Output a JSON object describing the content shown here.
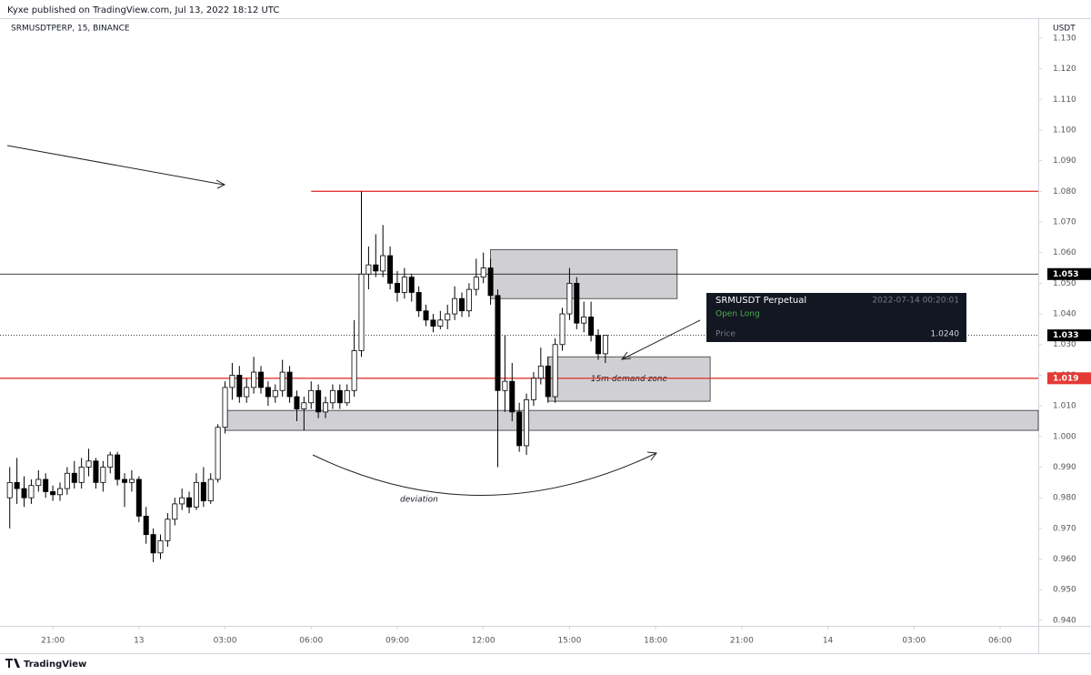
{
  "chart_data": {
    "type": "candlestick",
    "header": "Kyxe published on TradingView.com, Jul 13, 2022 18:12 UTC",
    "symbol": "SRMUSDTPERP, 15, BINANCE",
    "currency": "USDT",
    "brand": "TradingView",
    "bull_color": "#ffffff",
    "bear_color": "#000000",
    "x": [
      19.5,
      19.75,
      20,
      20.25,
      20.5,
      20.75,
      21,
      21.25,
      21.5,
      21.75,
      22,
      22.25,
      22.5,
      22.75,
      23,
      23.25,
      23.5,
      23.75,
      24,
      24.25,
      24.5,
      24.75,
      25,
      25.25,
      25.5,
      25.75,
      26,
      26.25,
      26.5,
      26.75,
      27,
      27.25,
      27.5,
      27.75,
      28,
      28.25,
      28.5,
      28.75,
      29,
      29.25,
      29.5,
      29.75,
      30,
      30.25,
      30.5,
      30.75,
      31,
      31.25,
      31.5,
      31.75,
      32,
      32.25,
      32.5,
      32.75,
      33,
      33.25,
      33.5,
      33.75,
      34,
      34.25,
      34.5,
      34.75,
      35,
      35.25,
      35.5,
      35.75,
      36,
      36.25,
      36.5,
      36.75,
      37,
      37.25,
      37.5,
      37.75,
      38,
      38.25,
      38.5,
      38.75,
      39,
      39.25,
      39.5,
      39.75,
      40,
      40.25
    ],
    "ohlc": [
      [
        0.98,
        0.99,
        0.97,
        0.985
      ],
      [
        0.985,
        0.993,
        0.978,
        0.983
      ],
      [
        0.983,
        0.987,
        0.977,
        0.98
      ],
      [
        0.98,
        0.986,
        0.978,
        0.984
      ],
      [
        0.984,
        0.989,
        0.982,
        0.986
      ],
      [
        0.986,
        0.988,
        0.98,
        0.982
      ],
      [
        0.982,
        0.984,
        0.979,
        0.981
      ],
      [
        0.981,
        0.985,
        0.979,
        0.983
      ],
      [
        0.983,
        0.99,
        0.981,
        0.988
      ],
      [
        0.988,
        0.992,
        0.983,
        0.985
      ],
      [
        0.985,
        0.993,
        0.983,
        0.99
      ],
      [
        0.99,
        0.996,
        0.987,
        0.992
      ],
      [
        0.992,
        0.993,
        0.983,
        0.985
      ],
      [
        0.985,
        0.992,
        0.982,
        0.99
      ],
      [
        0.99,
        0.995,
        0.988,
        0.994
      ],
      [
        0.994,
        0.995,
        0.984,
        0.986
      ],
      [
        0.986,
        0.988,
        0.977,
        0.985
      ],
      [
        0.985,
        0.989,
        0.982,
        0.986
      ],
      [
        0.986,
        0.987,
        0.972,
        0.974
      ],
      [
        0.974,
        0.977,
        0.965,
        0.968
      ],
      [
        0.968,
        0.97,
        0.959,
        0.962
      ],
      [
        0.962,
        0.968,
        0.96,
        0.966
      ],
      [
        0.966,
        0.975,
        0.964,
        0.973
      ],
      [
        0.973,
        0.98,
        0.971,
        0.978
      ],
      [
        0.978,
        0.983,
        0.976,
        0.98
      ],
      [
        0.98,
        0.982,
        0.975,
        0.977
      ],
      [
        0.977,
        0.988,
        0.976,
        0.985
      ],
      [
        0.985,
        0.99,
        0.977,
        0.979
      ],
      [
        0.979,
        0.988,
        0.978,
        0.986
      ],
      [
        0.986,
        1.004,
        0.985,
        1.003
      ],
      [
        1.003,
        1.018,
        1.001,
        1.016
      ],
      [
        1.016,
        1.024,
        1.012,
        1.02
      ],
      [
        1.02,
        1.023,
        1.011,
        1.013
      ],
      [
        1.013,
        1.019,
        1.011,
        1.016
      ],
      [
        1.016,
        1.026,
        1.014,
        1.021
      ],
      [
        1.021,
        1.023,
        1.014,
        1.016
      ],
      [
        1.016,
        1.018,
        1.01,
        1.013
      ],
      [
        1.013,
        1.017,
        1.011,
        1.015
      ],
      [
        1.015,
        1.025,
        1.013,
        1.021
      ],
      [
        1.021,
        1.023,
        1.011,
        1.013
      ],
      [
        1.013,
        1.015,
        1.005,
        1.009
      ],
      [
        1.009,
        1.013,
        1.002,
        1.011
      ],
      [
        1.011,
        1.018,
        1.009,
        1.015
      ],
      [
        1.015,
        1.017,
        1.006,
        1.008
      ],
      [
        1.008,
        1.013,
        1.006,
        1.011
      ],
      [
        1.011,
        1.017,
        1.009,
        1.015
      ],
      [
        1.015,
        1.017,
        1.009,
        1.011
      ],
      [
        1.011,
        1.017,
        1.01,
        1.015
      ],
      [
        1.015,
        1.038,
        1.013,
        1.028
      ],
      [
        1.028,
        1.08,
        1.026,
        1.053
      ],
      [
        1.053,
        1.062,
        1.048,
        1.056
      ],
      [
        1.056,
        1.066,
        1.052,
        1.054
      ],
      [
        1.054,
        1.069,
        1.052,
        1.059
      ],
      [
        1.059,
        1.062,
        1.048,
        1.05
      ],
      [
        1.05,
        1.054,
        1.044,
        1.047
      ],
      [
        1.047,
        1.055,
        1.045,
        1.052
      ],
      [
        1.052,
        1.053,
        1.044,
        1.047
      ],
      [
        1.047,
        1.049,
        1.039,
        1.041
      ],
      [
        1.041,
        1.043,
        1.036,
        1.038
      ],
      [
        1.038,
        1.04,
        1.034,
        1.036
      ],
      [
        1.036,
        1.041,
        1.035,
        1.038
      ],
      [
        1.038,
        1.043,
        1.035,
        1.04
      ],
      [
        1.04,
        1.049,
        1.038,
        1.045
      ],
      [
        1.045,
        1.047,
        1.039,
        1.041
      ],
      [
        1.041,
        1.05,
        1.039,
        1.048
      ],
      [
        1.048,
        1.058,
        1.046,
        1.052
      ],
      [
        1.052,
        1.06,
        1.05,
        1.055
      ],
      [
        1.055,
        1.058,
        1.043,
        1.046
      ],
      [
        1.046,
        1.048,
        0.99,
        1.015
      ],
      [
        1.015,
        1.033,
        1.008,
        1.018
      ],
      [
        1.018,
        1.024,
        1.005,
        1.008
      ],
      [
        1.008,
        1.011,
        0.995,
        0.997
      ],
      [
        0.997,
        1.014,
        0.994,
        1.012
      ],
      [
        1.012,
        1.021,
        1.01,
        1.019
      ],
      [
        1.019,
        1.029,
        1.017,
        1.023
      ],
      [
        1.023,
        1.026,
        1.011,
        1.013
      ],
      [
        1.013,
        1.032,
        1.011,
        1.03
      ],
      [
        1.03,
        1.042,
        1.028,
        1.04
      ],
      [
        1.04,
        1.055,
        1.038,
        1.05
      ],
      [
        1.05,
        1.052,
        1.035,
        1.037
      ],
      [
        1.037,
        1.044,
        1.034,
        1.039
      ],
      [
        1.039,
        1.044,
        1.031,
        1.033
      ],
      [
        1.033,
        1.035,
        1.025,
        1.027
      ],
      [
        1.027,
        1.033,
        1.024,
        1.033
      ]
    ],
    "xlim": [
      19.16,
      55.33
    ],
    "xticks": [
      {
        "value": 21,
        "label": "21:00"
      },
      {
        "value": 24,
        "label": "13"
      },
      {
        "value": 27,
        "label": "03:00"
      },
      {
        "value": 30,
        "label": "06:00"
      },
      {
        "value": 33,
        "label": "09:00"
      },
      {
        "value": 36,
        "label": "12:00"
      },
      {
        "value": 39,
        "label": "15:00"
      },
      {
        "value": 42,
        "label": "18:00"
      },
      {
        "value": 45,
        "label": "21:00"
      },
      {
        "value": 48,
        "label": "14"
      },
      {
        "value": 51,
        "label": "03:00"
      },
      {
        "value": 54,
        "label": "06:00"
      }
    ],
    "ylim": [
      0.9382,
      1.1359
    ],
    "yticks": [
      {
        "value": 0.94,
        "label": "0.940"
      },
      {
        "value": 0.95,
        "label": "0.950"
      },
      {
        "value": 0.96,
        "label": "0.960"
      },
      {
        "value": 0.97,
        "label": "0.970"
      },
      {
        "value": 0.98,
        "label": "0.980"
      },
      {
        "value": 0.99,
        "label": "0.990"
      },
      {
        "value": 1.0,
        "label": "1.000"
      },
      {
        "value": 1.01,
        "label": "1.010"
      },
      {
        "value": 1.02,
        "label": "1.020"
      },
      {
        "value": 1.03,
        "label": "1.030"
      },
      {
        "value": 1.04,
        "label": "1.040"
      },
      {
        "value": 1.05,
        "label": "1.050"
      },
      {
        "value": 1.06,
        "label": "1.060"
      },
      {
        "value": 1.07,
        "label": "1.070"
      },
      {
        "value": 1.08,
        "label": "1.080"
      },
      {
        "value": 1.09,
        "label": "1.090"
      },
      {
        "value": 1.1,
        "label": "1.100"
      },
      {
        "value": 1.11,
        "label": "1.110"
      },
      {
        "value": 1.12,
        "label": "1.120"
      },
      {
        "value": 1.13,
        "label": "1.130"
      }
    ],
    "levels": [
      {
        "value": 1.08,
        "color": "#e53935",
        "start": 30
      },
      {
        "value": 1.053,
        "color": "#000000",
        "start": 19.16,
        "label": "1.053"
      },
      {
        "value": 1.033,
        "color": "#000000",
        "start": 19.16,
        "label": "1.033",
        "dotted": true
      },
      {
        "value": 1.019,
        "color": "#e53935",
        "start": 19.16,
        "label": "1.019"
      }
    ],
    "zones": [
      {
        "top": 1.061,
        "bottom": 1.045,
        "start": 36.25,
        "end": 42.75
      },
      {
        "top": 1.0085,
        "bottom": 1.002,
        "start": 27,
        "end": 55.33
      },
      {
        "top": 1.026,
        "bottom": 1.0115,
        "start": 38.25,
        "end": 43.9,
        "text": "15m demand zone"
      }
    ],
    "annotations": {
      "deviation": "deviation"
    },
    "position": {
      "title": "SRMUSDT Perpetual",
      "time": "2022-07-14 00:20:01",
      "side": "Open Long",
      "price_label": "Price",
      "price": "1.0240"
    }
  }
}
